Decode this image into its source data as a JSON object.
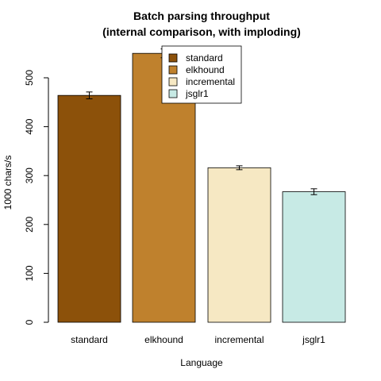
{
  "chart_data": {
    "type": "bar",
    "title": "Batch parsing throughput",
    "subtitle": "(internal comparison, with imploding)",
    "xlabel": "Language",
    "ylabel": "1000 chars/s",
    "ylim": [
      0,
      550
    ],
    "yticks": [
      0,
      100,
      200,
      300,
      400,
      500
    ],
    "categories": [
      "standard",
      "elkhound",
      "incremental",
      "jsglr1"
    ],
    "values": [
      464,
      550,
      316,
      267
    ],
    "error_low": [
      457,
      541,
      312,
      261
    ],
    "error_high": [
      471,
      559,
      320,
      273
    ],
    "colors": [
      "#8c510a",
      "#bf812d",
      "#f6e8c3",
      "#c7eae5"
    ],
    "grid": false,
    "legend": {
      "placement": "top-center",
      "entries": [
        "standard",
        "elkhound",
        "incremental",
        "jsglr1"
      ]
    }
  }
}
